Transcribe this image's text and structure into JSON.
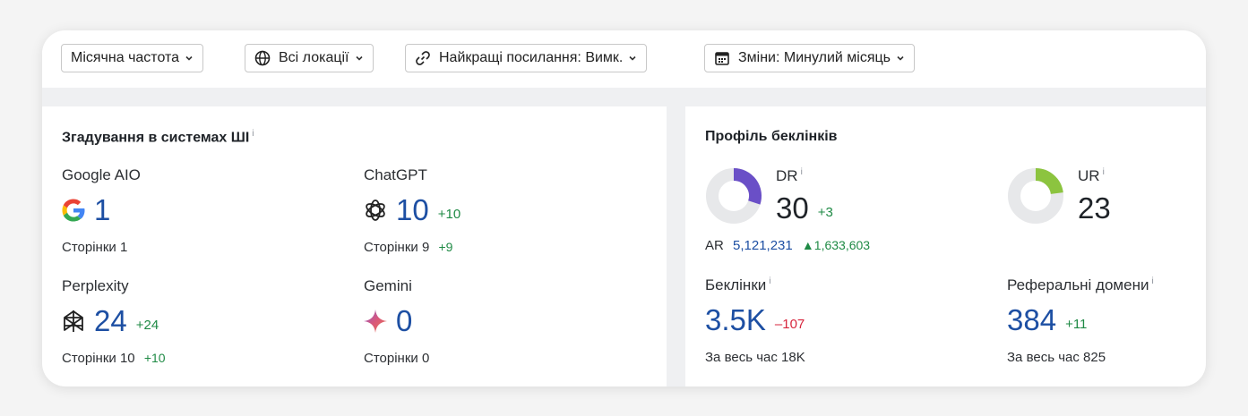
{
  "filters": [
    {
      "label": "Місячна частота",
      "icon": "none"
    },
    {
      "label": "Всі локації",
      "icon": "globe-icon"
    },
    {
      "label": "Найкращі посилання: Вимк.",
      "icon": "link-icon"
    },
    {
      "label": "Зміни: Минулий місяць",
      "icon": "calendar-icon"
    }
  ],
  "ai": {
    "title": "Згадування в системах ШІ",
    "info": "i",
    "google": {
      "name": "Google AIO",
      "value": "1",
      "pages_label": "Сторінки",
      "pages": "1",
      "icon": "google-icon"
    },
    "chatgpt": {
      "name": "ChatGPT",
      "value": "10",
      "delta": "+10",
      "pages_label": "Сторінки",
      "pages": "9",
      "pages_delta": "+9",
      "icon": "chatgpt-icon"
    },
    "perplexity": {
      "name": "Perplexity",
      "value": "24",
      "delta": "+24",
      "pages_label": "Сторінки",
      "pages": "10",
      "pages_delta": "+10",
      "icon": "perplexity-icon"
    },
    "gemini": {
      "name": "Gemini",
      "value": "0",
      "pages_label": "Сторінки",
      "pages": "0",
      "icon": "gemini-icon"
    }
  },
  "backlinks": {
    "title": "Профіль беклінків",
    "info": "i",
    "dr": {
      "label": "DR",
      "value": "30",
      "delta": "+3",
      "fill_percent": 30,
      "color": "#6a4fc7"
    },
    "ur": {
      "label": "UR",
      "value": "23",
      "fill_percent": 23,
      "color": "#8cc43f"
    },
    "ar": {
      "label": "AR",
      "value": "5,121,231",
      "delta": "1,633,603"
    },
    "links": {
      "label": "Беклінки",
      "value": "3.5K",
      "delta": "–107",
      "all_time_label": "За весь час",
      "all_time": "18K"
    },
    "domains": {
      "label": "Реферальні домени",
      "value": "384",
      "delta": "+11",
      "all_time_label": "За весь час",
      "all_time": "825"
    }
  },
  "colors": {
    "accent_blue": "#1d4fa3",
    "positive": "#1f8a45",
    "negative": "#d7263d"
  }
}
